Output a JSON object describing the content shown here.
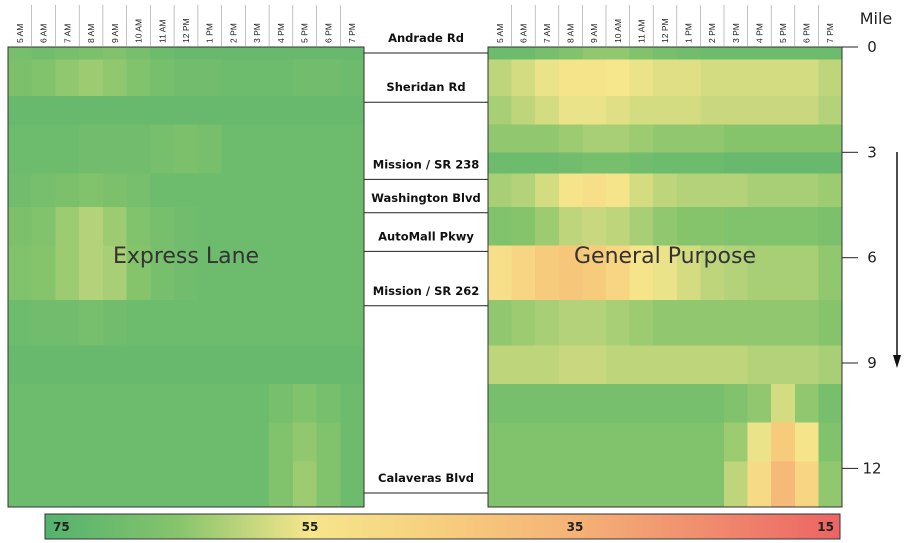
{
  "chart_data": {
    "type": "heatmap",
    "time_labels": [
      "5 AM",
      "6 AM",
      "7 AM",
      "8 AM",
      "9 AM",
      "10 AM",
      "11 AM",
      "12 PM",
      "1 PM",
      "2 PM",
      "3 PM",
      "4 PM",
      "5 PM",
      "6 PM",
      "7 PM"
    ],
    "mile_axis": {
      "title": "Mile",
      "ticks": [
        0,
        3,
        6,
        9,
        12
      ],
      "range": [
        0,
        13.1
      ],
      "direction_arrow": "down"
    },
    "locations": [
      {
        "name": "Andrade Rd",
        "mile": 0
      },
      {
        "name": "Sheridan Rd",
        "mile": 1.4
      },
      {
        "name": "Mission / SR 238",
        "mile": 3.6
      },
      {
        "name": "Washington Blvd",
        "mile": 4.55
      },
      {
        "name": "AutoMall Pkwy",
        "mile": 5.65
      },
      {
        "name": "Mission / SR 262",
        "mile": 7.2
      },
      {
        "name": "Calaveras Blvd",
        "mile": 13.1
      }
    ],
    "colorbar": {
      "labels": [
        "75",
        "55",
        "35",
        "15"
      ],
      "min": 15,
      "max": 75
    },
    "panels": [
      {
        "label": "Express Lane",
        "row_ranges": [
          [
            0,
            0.35
          ],
          [
            0.35,
            1.4
          ],
          [
            1.4,
            2.2
          ],
          [
            2.2,
            3.6
          ],
          [
            3.6,
            4.55
          ],
          [
            4.55,
            5.65
          ],
          [
            5.65,
            7.2
          ],
          [
            7.2,
            8.5
          ],
          [
            8.5,
            9.6
          ],
          [
            9.6,
            10.7
          ],
          [
            10.7,
            11.8
          ],
          [
            11.8,
            13.1
          ]
        ],
        "values": [
          [
            68,
            69,
            68,
            67,
            66,
            68,
            70,
            71,
            71,
            71,
            71,
            71,
            71,
            71,
            71
          ],
          [
            67,
            66,
            64,
            63,
            64,
            66,
            68,
            69,
            69,
            70,
            70,
            70,
            69,
            69,
            70
          ],
          [
            71,
            71,
            71,
            71,
            71,
            71,
            71,
            71,
            71,
            71,
            71,
            71,
            71,
            71,
            71
          ],
          [
            70,
            70,
            70,
            69,
            69,
            69,
            68,
            67,
            68,
            70,
            70,
            70,
            70,
            70,
            70
          ],
          [
            69,
            68,
            67,
            66,
            67,
            68,
            70,
            70,
            70,
            70,
            70,
            70,
            70,
            70,
            70
          ],
          [
            67,
            66,
            63,
            61,
            63,
            66,
            68,
            69,
            70,
            70,
            70,
            70,
            70,
            70,
            70
          ],
          [
            66,
            65,
            63,
            61,
            62,
            65,
            68,
            69,
            70,
            70,
            70,
            70,
            70,
            70,
            70
          ],
          [
            70,
            69,
            69,
            68,
            69,
            70,
            70,
            70,
            70,
            70,
            70,
            70,
            70,
            70,
            70
          ],
          [
            71,
            71,
            71,
            71,
            71,
            71,
            71,
            71,
            71,
            71,
            71,
            71,
            71,
            71,
            71
          ],
          [
            70,
            70,
            70,
            70,
            70,
            70,
            70,
            70,
            70,
            70,
            70,
            68,
            66,
            68,
            70
          ],
          [
            70,
            70,
            70,
            70,
            70,
            70,
            70,
            70,
            70,
            70,
            70,
            66,
            64,
            66,
            70
          ],
          [
            70,
            70,
            70,
            70,
            70,
            70,
            70,
            70,
            70,
            70,
            70,
            66,
            63,
            66,
            70
          ]
        ]
      },
      {
        "label": "General Purpose",
        "row_ranges": [
          [
            0,
            0.35
          ],
          [
            0.35,
            1.4
          ],
          [
            1.4,
            2.2
          ],
          [
            2.2,
            3.0
          ],
          [
            3.0,
            3.6
          ],
          [
            3.6,
            4.55
          ],
          [
            4.55,
            5.65
          ],
          [
            5.65,
            7.2
          ],
          [
            7.2,
            8.5
          ],
          [
            8.5,
            9.6
          ],
          [
            9.6,
            10.7
          ],
          [
            10.7,
            11.8
          ],
          [
            11.8,
            13.1
          ]
        ],
        "values": [
          [
            70,
            70,
            68,
            66,
            64,
            64,
            66,
            68,
            69,
            70,
            70,
            70,
            70,
            70,
            70
          ],
          [
            60,
            58,
            56,
            54,
            54,
            55,
            56,
            57,
            57,
            58,
            58,
            58,
            58,
            58,
            60
          ],
          [
            62,
            60,
            58,
            56,
            56,
            57,
            58,
            58,
            58,
            59,
            59,
            59,
            59,
            59,
            61
          ],
          [
            64,
            64,
            64,
            63,
            62,
            62,
            63,
            64,
            64,
            64,
            65,
            65,
            65,
            65,
            65
          ],
          [
            70,
            70,
            70,
            69,
            68,
            68,
            69,
            70,
            70,
            70,
            71,
            71,
            71,
            71,
            71
          ],
          [
            62,
            61,
            58,
            54,
            52,
            54,
            58,
            60,
            61,
            61,
            61,
            62,
            62,
            62,
            63
          ],
          [
            66,
            65,
            63,
            60,
            59,
            60,
            62,
            64,
            65,
            65,
            66,
            66,
            66,
            66,
            67
          ],
          [
            52,
            48,
            44,
            42,
            44,
            48,
            54,
            56,
            58,
            60,
            61,
            62,
            62,
            62,
            64
          ],
          [
            64,
            63,
            62,
            61,
            61,
            62,
            63,
            64,
            64,
            64,
            64,
            64,
            64,
            64,
            65
          ],
          [
            60,
            60,
            60,
            59,
            59,
            60,
            60,
            60,
            60,
            60,
            60,
            61,
            61,
            61,
            62
          ],
          [
            68,
            68,
            68,
            68,
            68,
            68,
            68,
            68,
            68,
            68,
            66,
            64,
            58,
            64,
            68
          ],
          [
            66,
            66,
            66,
            66,
            66,
            66,
            66,
            66,
            66,
            66,
            63,
            56,
            44,
            54,
            66
          ],
          [
            66,
            66,
            66,
            66,
            66,
            66,
            66,
            66,
            66,
            66,
            60,
            50,
            38,
            48,
            64
          ]
        ]
      }
    ]
  }
}
